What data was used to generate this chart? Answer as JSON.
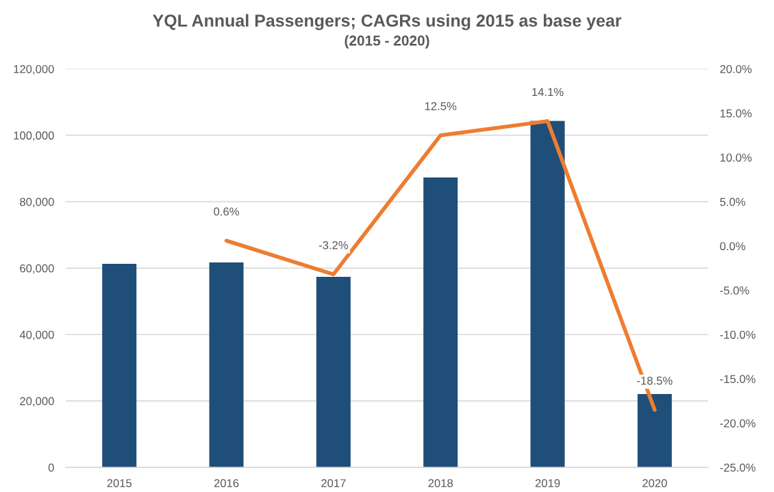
{
  "chart_data": {
    "type": "bar",
    "title": "YQL Annual Passengers; CAGRs using 2015 as base year",
    "subtitle": "(2015 - 2020)",
    "categories": [
      "2015",
      "2016",
      "2017",
      "2018",
      "2019",
      "2020"
    ],
    "series": [
      {
        "color": "#1f4e79",
        "values": [
          61300,
          61700,
          57400,
          87300,
          104300,
          22100
        ]
      },
      {
        "type": "line",
        "axis": "y2",
        "color": "#ed7d31",
        "values": [
          null,
          0.6,
          -3.2,
          12.5,
          14.1,
          -18.5
        ],
        "value_labels": [
          null,
          "0.6%",
          "-3.2%",
          "12.5%",
          "14.1%",
          "-18.5%"
        ]
      }
    ],
    "ylim": [
      0,
      120000
    ],
    "yticks": [
      {
        "value": 0,
        "label": "0"
      },
      {
        "value": 20000,
        "label": "20,000"
      },
      {
        "value": 40000,
        "label": "40,000"
      },
      {
        "value": 60000,
        "label": "60,000"
      },
      {
        "value": 80000,
        "label": "80,000"
      },
      {
        "value": 100000,
        "label": "100,000"
      },
      {
        "value": 120000,
        "label": "120,000"
      }
    ],
    "y2lim": [
      -25,
      20
    ],
    "y2ticks": [
      {
        "value": -25,
        "label": "-25.0%"
      },
      {
        "value": -20,
        "label": "-20.0%"
      },
      {
        "value": -15,
        "label": "-15.0%"
      },
      {
        "value": -10,
        "label": "-10.0%"
      },
      {
        "value": -5,
        "label": "-5.0%"
      },
      {
        "value": 0,
        "label": "0.0%"
      },
      {
        "value": 5,
        "label": "5.0%"
      },
      {
        "value": 10,
        "label": "10.0%"
      },
      {
        "value": 15,
        "label": "15.0%"
      },
      {
        "value": 20,
        "label": "20.0%"
      }
    ],
    "grid": "y",
    "legend": false,
    "marker": "none",
    "line_style": "solid"
  }
}
